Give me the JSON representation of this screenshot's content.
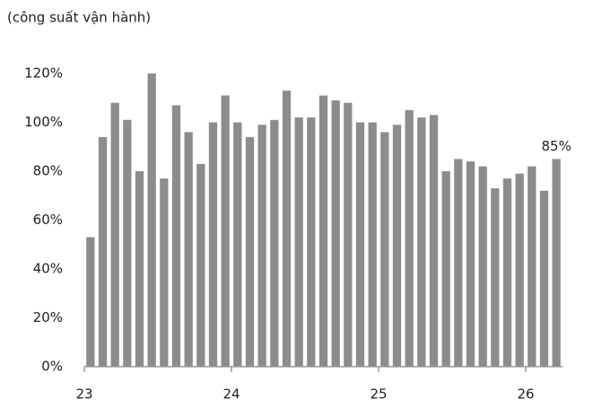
{
  "chart_data": {
    "type": "bar",
    "title": "(công suất vận hành)",
    "categories": [
      null,
      null,
      null,
      null,
      null,
      null,
      null,
      null,
      null,
      null,
      null,
      null,
      null,
      null,
      null,
      null,
      null,
      null,
      null,
      null,
      null,
      null,
      null,
      null,
      null,
      null,
      null,
      null,
      null,
      null,
      null,
      null,
      null,
      null,
      null,
      null,
      null,
      null,
      null
    ],
    "values": [
      53,
      94,
      108,
      101,
      80,
      120,
      77,
      107,
      96,
      83,
      100,
      111,
      100,
      94,
      99,
      101,
      113,
      102,
      102,
      111,
      109,
      108,
      100,
      100,
      96,
      99,
      105,
      102,
      103,
      80,
      85,
      84,
      82,
      73,
      77,
      79,
      82,
      72,
      85
    ],
    "value_labels": [
      null,
      null,
      null,
      null,
      null,
      null,
      null,
      null,
      null,
      null,
      null,
      null,
      null,
      null,
      null,
      null,
      null,
      null,
      null,
      null,
      null,
      null,
      null,
      null,
      null,
      null,
      null,
      null,
      null,
      null,
      null,
      null,
      null,
      null,
      null,
      null,
      null,
      null,
      "85%"
    ],
    "color": "#8c8c8c",
    "ylim": [
      0,
      120
    ],
    "yticks": [
      {
        "value": 0,
        "label": "0%"
      },
      {
        "value": 20,
        "label": "20%"
      },
      {
        "value": 40,
        "label": "40%"
      },
      {
        "value": 60,
        "label": "60%"
      },
      {
        "value": 80,
        "label": "80%"
      },
      {
        "value": 100,
        "label": "100%"
      },
      {
        "value": 120,
        "label": "120%"
      }
    ],
    "xlim": [
      23,
      26.25
    ],
    "xticks": [
      23,
      24,
      25,
      26
    ],
    "grid": false
  }
}
